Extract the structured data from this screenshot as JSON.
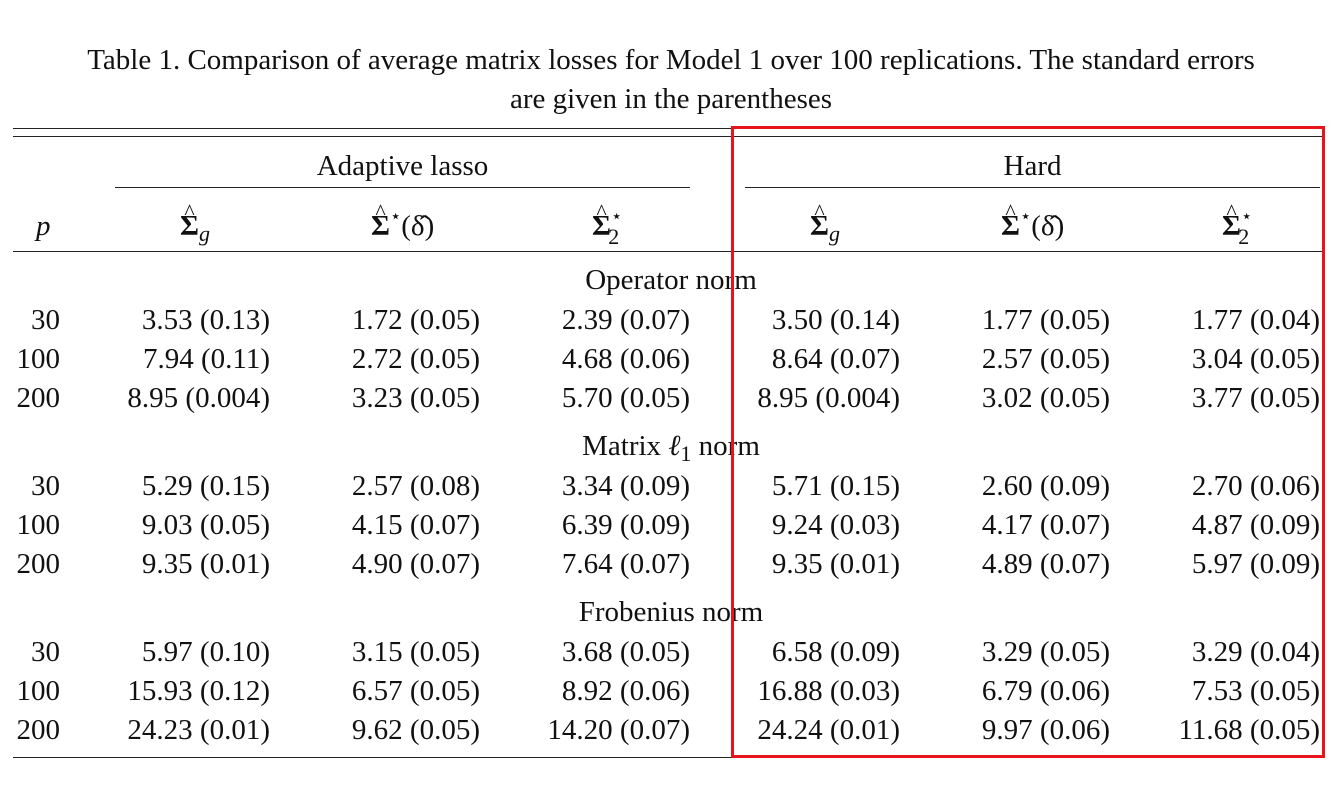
{
  "caption": {
    "line1": "Table 1.  Comparison of average matrix losses for Model 1 over 100 replications. The standard errors",
    "line2": "are given in the parentheses"
  },
  "header": {
    "group_adaptive": "Adaptive lasso",
    "group_hard": "Hard",
    "p_label": "p",
    "sigma_letter": "Σ",
    "hat": "^",
    "star": "⋆",
    "sub_g": "g",
    "sub_2": "2",
    "delta_arg": "(δ̂)"
  },
  "sections": [
    {
      "title": "Operator norm",
      "rows": [
        {
          "p": "30",
          "cells": [
            "3.53 (0.13)",
            "1.72 (0.05)",
            "2.39 (0.07)",
            "3.50 (0.14)",
            "1.77 (0.05)",
            "1.77 (0.04)"
          ]
        },
        {
          "p": "100",
          "cells": [
            "7.94 (0.11)",
            "2.72 (0.05)",
            "4.68 (0.06)",
            "8.64 (0.07)",
            "2.57 (0.05)",
            "3.04 (0.05)"
          ]
        },
        {
          "p": "200",
          "cells": [
            "8.95 (0.004)",
            "3.23 (0.05)",
            "5.70 (0.05)",
            "8.95 (0.004)",
            "3.02 (0.05)",
            "3.77 (0.05)"
          ]
        }
      ]
    },
    {
      "title_prefix": "Matrix ",
      "title_ell": "ℓ",
      "title_sub": "1",
      "title_suffix": " norm",
      "rows": [
        {
          "p": "30",
          "cells": [
            "5.29 (0.15)",
            "2.57 (0.08)",
            "3.34 (0.09)",
            "5.71 (0.15)",
            "2.60 (0.09)",
            "2.70 (0.06)"
          ]
        },
        {
          "p": "100",
          "cells": [
            "9.03 (0.05)",
            "4.15 (0.07)",
            "6.39 (0.09)",
            "9.24 (0.03)",
            "4.17 (0.07)",
            "4.87 (0.09)"
          ]
        },
        {
          "p": "200",
          "cells": [
            "9.35 (0.01)",
            "4.90 (0.07)",
            "7.64 (0.07)",
            "9.35 (0.01)",
            "4.89 (0.07)",
            "5.97 (0.09)"
          ]
        }
      ]
    },
    {
      "title": "Frobenius norm",
      "rows": [
        {
          "p": "30",
          "cells": [
            "5.97 (0.10)",
            "3.15 (0.05)",
            "3.68 (0.05)",
            "6.58 (0.09)",
            "3.29 (0.05)",
            "3.29 (0.04)"
          ]
        },
        {
          "p": "100",
          "cells": [
            "15.93 (0.12)",
            "6.57 (0.05)",
            "8.92 (0.06)",
            "16.88 (0.03)",
            "6.79 (0.06)",
            "7.53 (0.05)"
          ]
        },
        {
          "p": "200",
          "cells": [
            "24.23 (0.01)",
            "9.62 (0.05)",
            "14.20 (0.07)",
            "24.24 (0.01)",
            "9.97 (0.06)",
            "11.68 (0.05)"
          ]
        }
      ]
    }
  ],
  "highlight_color": "#e8141a"
}
